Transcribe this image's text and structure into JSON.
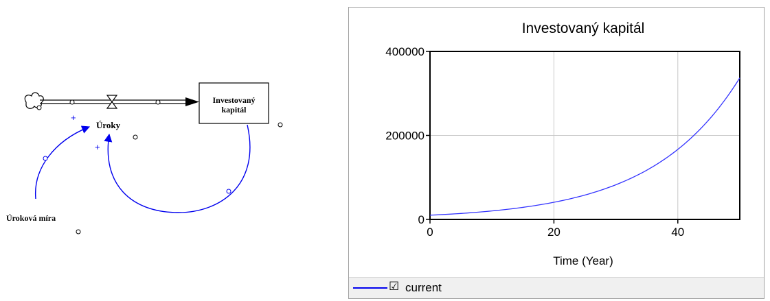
{
  "diagram": {
    "stock_label_line1": "Investovaný",
    "stock_label_line2": "kapitál",
    "flow_label": "Úroky",
    "aux_label": "Úroková míra",
    "polarity_1": "+",
    "polarity_2": "+",
    "link_color": "#0000ee"
  },
  "chart_panel": {
    "legend_label": "current",
    "legend_checkbox": "☑"
  },
  "chart_data": {
    "type": "line",
    "title": "Investovaný kapitál",
    "xlabel": "Time (Year)",
    "ylabel": "",
    "xlim": [
      0,
      50
    ],
    "ylim": [
      0,
      400000
    ],
    "x_ticks": [
      0,
      20,
      40
    ],
    "y_ticks": [
      0,
      200000,
      400000
    ],
    "x_tick_labels": [
      "0",
      "20",
      "40"
    ],
    "y_tick_labels": [
      "0",
      "200000",
      "400000"
    ],
    "grid": true,
    "series": [
      {
        "name": "current",
        "color": "#3333ff",
        "x": [
          0,
          5,
          10,
          15,
          20,
          25,
          30,
          35,
          40,
          45,
          50
        ],
        "y": [
          10000,
          14200,
          20200,
          28700,
          40800,
          58000,
          82500,
          117300,
          166700,
          237000,
          337000
        ]
      }
    ]
  }
}
